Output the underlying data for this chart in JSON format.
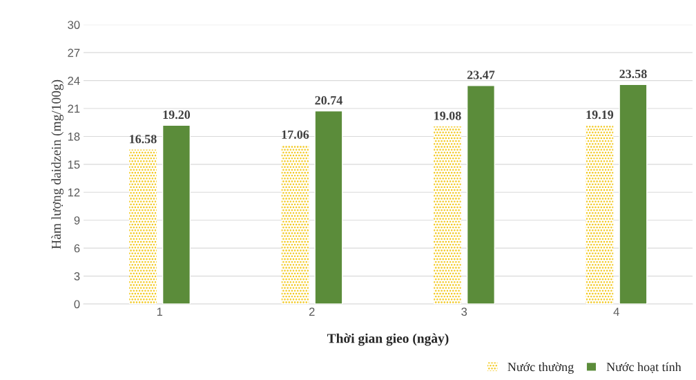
{
  "chart_data": {
    "type": "bar",
    "xlabel": "Thời gian gieo (ngày)",
    "ylabel": "Hàm lượng daidzein (mg/100g)",
    "categories": [
      "1",
      "2",
      "3",
      "4"
    ],
    "series": [
      {
        "name": "Nước thường",
        "color": "#f2c200",
        "values": [
          16.58,
          17.06,
          19.08,
          19.19
        ],
        "value_labels": [
          "16.58",
          "17.06",
          "19.08",
          "19.19"
        ]
      },
      {
        "name": "Nước hoạt tính",
        "color": "#5b8c3a",
        "values": [
          19.2,
          20.74,
          23.47,
          23.58
        ],
        "value_labels": [
          "19.20",
          "20.74",
          "23.47",
          "23.58"
        ]
      }
    ],
    "ylim": [
      0,
      30
    ],
    "yticks": [
      0,
      3,
      6,
      9,
      12,
      15,
      18,
      21,
      24,
      27,
      30
    ],
    "grid": "y",
    "legend": "bottom right"
  }
}
